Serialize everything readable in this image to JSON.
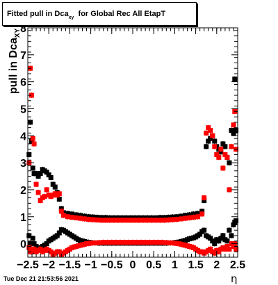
{
  "title": {
    "prefix": "Fitted pull in Dca",
    "subscript": "xy",
    "suffix": "for Global Rec All EtapT"
  },
  "ylabel": {
    "main": "pull in Dca",
    "sub": "XY"
  },
  "xlabel": "η",
  "datestamp": "Tue Dec 21 21:53:56 2021",
  "colors": {
    "series_black": "#000000",
    "series_red": "#ff0000"
  },
  "chart_data": {
    "type": "scatter",
    "xlim": [
      -2.5,
      2.5
    ],
    "ylim": [
      -0.5,
      8
    ],
    "xticks": [
      -2.5,
      -2,
      -1.5,
      -1,
      -0.5,
      0,
      0.5,
      1,
      1.5,
      2,
      2.5
    ],
    "xtick_labels": [
      "−2.5",
      "−2",
      "−1.5",
      "−1",
      "−0.5",
      "0",
      "0.5",
      "1",
      "1.5",
      "2",
      "2.5"
    ],
    "yticks": [
      0,
      1,
      2,
      3,
      4,
      5,
      6,
      7,
      8
    ],
    "ytick_labels": [
      "0",
      "1",
      "2",
      "3",
      "4",
      "5",
      "6",
      "7",
      "8"
    ],
    "grid": false,
    "legend": false,
    "series": [
      {
        "color": "#000000",
        "marker": "square",
        "points": [
          [
            -2.47,
            3.3
          ],
          [
            -2.44,
            4.5
          ],
          [
            -2.41,
            3.8
          ],
          [
            -2.38,
            2.8
          ],
          [
            -2.35,
            2.6
          ],
          [
            -2.3,
            2.6
          ],
          [
            -2.25,
            2.5
          ],
          [
            -2.2,
            2.6
          ],
          [
            -2.15,
            2.75
          ],
          [
            -2.1,
            2.7
          ],
          [
            -2.05,
            2.65
          ],
          [
            -2.0,
            2.55
          ],
          [
            -1.95,
            2.45
          ],
          [
            -1.9,
            2.2
          ],
          [
            -1.85,
            2.1
          ],
          [
            -1.8,
            1.9
          ],
          [
            -1.75,
            1.65
          ],
          [
            -1.7,
            1.3
          ],
          [
            -1.65,
            1.15
          ],
          [
            -1.55,
            1.12
          ],
          [
            -1.45,
            1.1
          ],
          [
            -1.35,
            1.07
          ],
          [
            -1.25,
            1.05
          ],
          [
            -1.15,
            1.02
          ],
          [
            -1.05,
            1.0
          ],
          [
            -0.95,
            0.99
          ],
          [
            -0.85,
            0.98
          ],
          [
            -0.75,
            0.97
          ],
          [
            -0.65,
            0.97
          ],
          [
            -0.55,
            0.96
          ],
          [
            -0.45,
            0.96
          ],
          [
            -0.35,
            0.96
          ],
          [
            -0.25,
            0.96
          ],
          [
            -0.15,
            0.96
          ],
          [
            -0.05,
            0.96
          ],
          [
            0.05,
            0.96
          ],
          [
            0.15,
            0.96
          ],
          [
            0.25,
            0.96
          ],
          [
            0.35,
            0.96
          ],
          [
            0.45,
            0.96
          ],
          [
            0.55,
            0.96
          ],
          [
            0.65,
            0.97
          ],
          [
            0.75,
            0.97
          ],
          [
            0.85,
            0.98
          ],
          [
            0.95,
            0.99
          ],
          [
            1.05,
            1.0
          ],
          [
            1.15,
            1.02
          ],
          [
            1.25,
            1.05
          ],
          [
            1.35,
            1.07
          ],
          [
            1.45,
            1.1
          ],
          [
            1.55,
            1.12
          ],
          [
            1.65,
            1.2
          ],
          [
            1.7,
            1.6
          ],
          [
            1.75,
            3.6
          ],
          [
            1.8,
            3.8
          ],
          [
            1.85,
            3.9
          ],
          [
            1.9,
            4.0
          ],
          [
            1.95,
            3.8
          ],
          [
            2.0,
            3.6
          ],
          [
            2.05,
            3.5
          ],
          [
            2.1,
            3.4
          ],
          [
            2.15,
            3.7
          ],
          [
            2.2,
            3.6
          ],
          [
            2.25,
            3.2
          ],
          [
            2.3,
            3.0
          ],
          [
            2.35,
            4.2
          ],
          [
            2.4,
            4.1
          ],
          [
            2.43,
            6.1
          ],
          [
            2.46,
            4.2
          ],
          [
            -2.47,
            0.3
          ],
          [
            -2.44,
            0.0
          ],
          [
            -2.41,
            -0.3
          ],
          [
            -2.38,
            0.2
          ],
          [
            -2.35,
            0.0
          ],
          [
            -2.3,
            -0.1
          ],
          [
            -2.25,
            -0.2
          ],
          [
            -2.2,
            -0.15
          ],
          [
            -2.15,
            -0.1
          ],
          [
            -2.1,
            -0.05
          ],
          [
            -2.05,
            0.0
          ],
          [
            -2.0,
            0.1
          ],
          [
            -1.95,
            0.15
          ],
          [
            -1.9,
            0.2
          ],
          [
            -1.85,
            0.25
          ],
          [
            -1.8,
            0.3
          ],
          [
            -1.75,
            0.4
          ],
          [
            -1.7,
            0.52
          ],
          [
            -1.65,
            0.5
          ],
          [
            -1.6,
            0.45
          ],
          [
            -1.55,
            0.4
          ],
          [
            -1.5,
            0.35
          ],
          [
            -1.45,
            0.3
          ],
          [
            -1.4,
            0.25
          ],
          [
            -1.35,
            0.2
          ],
          [
            -1.3,
            0.15
          ],
          [
            -1.25,
            0.12
          ],
          [
            -1.2,
            0.1
          ],
          [
            -1.15,
            0.08
          ],
          [
            -1.1,
            0.06
          ],
          [
            -1.05,
            0.05
          ],
          [
            -1.0,
            0.04
          ],
          [
            -0.9,
            0.03
          ],
          [
            -0.8,
            0.02
          ],
          [
            -0.7,
            0.02
          ],
          [
            -0.6,
            0.02
          ],
          [
            -0.5,
            0.02
          ],
          [
            -0.4,
            0.02
          ],
          [
            -0.3,
            0.02
          ],
          [
            -0.2,
            0.02
          ],
          [
            -0.1,
            0.02
          ],
          [
            0.0,
            0.02
          ],
          [
            0.1,
            0.02
          ],
          [
            0.2,
            0.02
          ],
          [
            0.3,
            0.02
          ],
          [
            0.4,
            0.02
          ],
          [
            0.5,
            0.02
          ],
          [
            0.6,
            0.02
          ],
          [
            0.7,
            0.02
          ],
          [
            0.8,
            0.02
          ],
          [
            0.9,
            0.03
          ],
          [
            1.0,
            0.04
          ],
          [
            1.05,
            0.05
          ],
          [
            1.1,
            0.06
          ],
          [
            1.15,
            0.08
          ],
          [
            1.2,
            0.1
          ],
          [
            1.25,
            0.12
          ],
          [
            1.3,
            0.15
          ],
          [
            1.35,
            0.18
          ],
          [
            1.4,
            0.2
          ],
          [
            1.45,
            0.22
          ],
          [
            1.5,
            0.25
          ],
          [
            1.55,
            0.3
          ],
          [
            1.6,
            0.35
          ],
          [
            1.65,
            0.45
          ],
          [
            1.7,
            0.5
          ],
          [
            1.75,
            0.3
          ],
          [
            1.8,
            0.25
          ],
          [
            1.85,
            0.2
          ],
          [
            1.9,
            0.1
          ],
          [
            1.95,
            0.0
          ],
          [
            2.0,
            0.15
          ],
          [
            2.05,
            0.1
          ],
          [
            2.1,
            0.2
          ],
          [
            2.15,
            0.3
          ],
          [
            2.2,
            0.15
          ],
          [
            2.25,
            0.1
          ],
          [
            2.3,
            0.5
          ],
          [
            2.35,
            0.3
          ],
          [
            2.4,
            0.7
          ],
          [
            2.43,
            0.8
          ],
          [
            2.46,
            0.85
          ]
        ]
      },
      {
        "color": "#ff0000",
        "marker": "square",
        "points": [
          [
            -2.47,
            3.0
          ],
          [
            -2.44,
            6.5
          ],
          [
            -2.41,
            5.5
          ],
          [
            -2.38,
            3.9
          ],
          [
            -2.35,
            3.7
          ],
          [
            -2.3,
            2.2
          ],
          [
            -2.25,
            1.9
          ],
          [
            -2.2,
            1.6
          ],
          [
            -2.15,
            1.7
          ],
          [
            -2.1,
            1.75
          ],
          [
            -2.05,
            2.0
          ],
          [
            -2.0,
            1.8
          ],
          [
            -1.95,
            1.75
          ],
          [
            -1.9,
            1.8
          ],
          [
            -1.85,
            1.85
          ],
          [
            -1.8,
            1.8
          ],
          [
            -1.75,
            1.85
          ],
          [
            -1.7,
            1.2
          ],
          [
            -1.65,
            1.05
          ],
          [
            -1.55,
            1.0
          ],
          [
            -1.45,
            0.98
          ],
          [
            -1.35,
            0.96
          ],
          [
            -1.25,
            0.94
          ],
          [
            -1.15,
            0.92
          ],
          [
            -1.05,
            0.9
          ],
          [
            -0.95,
            0.89
          ],
          [
            -0.85,
            0.88
          ],
          [
            -0.75,
            0.87
          ],
          [
            -0.65,
            0.87
          ],
          [
            -0.55,
            0.87
          ],
          [
            -0.45,
            0.87
          ],
          [
            -0.35,
            0.87
          ],
          [
            -0.25,
            0.87
          ],
          [
            -0.15,
            0.87
          ],
          [
            -0.05,
            0.87
          ],
          [
            0.05,
            0.87
          ],
          [
            0.15,
            0.87
          ],
          [
            0.25,
            0.87
          ],
          [
            0.35,
            0.87
          ],
          [
            0.45,
            0.87
          ],
          [
            0.55,
            0.87
          ],
          [
            0.65,
            0.87
          ],
          [
            0.75,
            0.87
          ],
          [
            0.85,
            0.88
          ],
          [
            0.95,
            0.89
          ],
          [
            1.05,
            0.9
          ],
          [
            1.15,
            0.92
          ],
          [
            1.25,
            0.94
          ],
          [
            1.35,
            0.96
          ],
          [
            1.45,
            0.98
          ],
          [
            1.55,
            1.0
          ],
          [
            1.65,
            1.1
          ],
          [
            1.7,
            1.7
          ],
          [
            1.75,
            4.1
          ],
          [
            1.8,
            4.3
          ],
          [
            1.85,
            4.2
          ],
          [
            1.9,
            4.0
          ],
          [
            1.95,
            3.6
          ],
          [
            2.0,
            3.3
          ],
          [
            2.05,
            3.2
          ],
          [
            2.1,
            3.5
          ],
          [
            2.15,
            2.8
          ],
          [
            2.2,
            3.3
          ],
          [
            2.25,
            3.2
          ],
          [
            2.3,
            2.0
          ],
          [
            2.35,
            3.6
          ],
          [
            2.4,
            4.4
          ],
          [
            2.43,
            4.9
          ],
          [
            2.46,
            3.5
          ],
          [
            -2.47,
            -0.15
          ],
          [
            -2.44,
            -0.3
          ],
          [
            -2.41,
            -0.2
          ],
          [
            -2.38,
            -0.25
          ],
          [
            -2.35,
            -0.2
          ],
          [
            -2.3,
            -0.3
          ],
          [
            -2.25,
            -0.25
          ],
          [
            -2.2,
            -0.2
          ],
          [
            -2.15,
            -0.3
          ],
          [
            -2.1,
            -0.25
          ],
          [
            -2.05,
            -0.2
          ],
          [
            -2.0,
            -0.25
          ],
          [
            -1.95,
            -0.3
          ],
          [
            -1.9,
            -0.4
          ],
          [
            -1.85,
            -0.35
          ],
          [
            -1.8,
            -0.3
          ],
          [
            -1.75,
            -0.3
          ],
          [
            -1.7,
            -0.4
          ],
          [
            -1.65,
            -0.35
          ],
          [
            -1.6,
            -0.3
          ],
          [
            -1.55,
            -0.25
          ],
          [
            -1.5,
            -0.2
          ],
          [
            -1.45,
            -0.15
          ],
          [
            -1.4,
            -0.12
          ],
          [
            -1.35,
            -0.1
          ],
          [
            -1.3,
            -0.08
          ],
          [
            -1.25,
            -0.06
          ],
          [
            -1.2,
            -0.04
          ],
          [
            -1.15,
            -0.02
          ],
          [
            -1.1,
            0.0
          ],
          [
            -1.05,
            0.01
          ],
          [
            -1.0,
            0.02
          ],
          [
            -0.9,
            0.03
          ],
          [
            -0.8,
            0.04
          ],
          [
            -0.7,
            0.05
          ],
          [
            -0.6,
            0.05
          ],
          [
            -0.5,
            0.05
          ],
          [
            -0.4,
            0.05
          ],
          [
            -0.3,
            0.05
          ],
          [
            -0.2,
            0.05
          ],
          [
            -0.1,
            0.05
          ],
          [
            0.0,
            0.05
          ],
          [
            0.1,
            0.05
          ],
          [
            0.2,
            0.05
          ],
          [
            0.3,
            0.05
          ],
          [
            0.4,
            0.05
          ],
          [
            0.5,
            0.05
          ],
          [
            0.6,
            0.05
          ],
          [
            0.7,
            0.05
          ],
          [
            0.8,
            0.04
          ],
          [
            0.9,
            0.03
          ],
          [
            1.0,
            0.02
          ],
          [
            1.05,
            0.01
          ],
          [
            1.1,
            0.0
          ],
          [
            1.15,
            -0.02
          ],
          [
            1.2,
            -0.04
          ],
          [
            1.25,
            -0.06
          ],
          [
            1.3,
            -0.08
          ],
          [
            1.35,
            -0.1
          ],
          [
            1.4,
            -0.12
          ],
          [
            1.45,
            -0.15
          ],
          [
            1.5,
            -0.2
          ],
          [
            1.55,
            -0.25
          ],
          [
            1.6,
            -0.3
          ],
          [
            1.65,
            -0.3
          ],
          [
            1.7,
            -0.35
          ],
          [
            1.75,
            -0.3
          ],
          [
            1.8,
            -0.25
          ],
          [
            1.85,
            -0.2
          ],
          [
            1.9,
            -0.3
          ],
          [
            1.95,
            -0.35
          ],
          [
            2.0,
            -0.25
          ],
          [
            2.05,
            -0.3
          ],
          [
            2.1,
            -0.2
          ],
          [
            2.15,
            -0.15
          ],
          [
            2.2,
            -0.2
          ],
          [
            2.25,
            -0.1
          ],
          [
            2.3,
            -0.2
          ],
          [
            2.35,
            0.0
          ],
          [
            2.4,
            -0.1
          ],
          [
            2.43,
            0.0
          ],
          [
            2.46,
            -0.2
          ]
        ]
      }
    ]
  }
}
